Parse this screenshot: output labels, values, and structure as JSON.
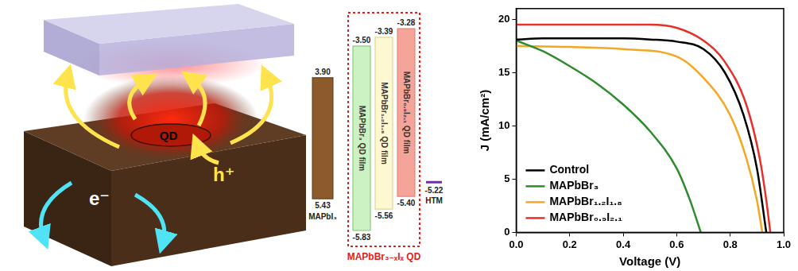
{
  "schematic": {
    "qd_label": "QD",
    "hole_label": "h⁺",
    "electron_label": "e⁻"
  },
  "band_diagram": {
    "materials": [
      {
        "name": "MAPbI₃",
        "conduction_band": {
          "value": 3.9,
          "label": "3.90"
        },
        "valence_band": 5.43,
        "color": "#8c5a2b"
      }
    ],
    "group": {
      "label": "MAPbBr₃₋ₓIₓ QD",
      "color": "#e0201c",
      "materials": [
        {
          "name": "MAPbBr₃ QD film",
          "conduction_band": {
            "value": -3.5,
            "label": "-3.50"
          },
          "valence_band": -5.83,
          "color": "#ccf2c4"
        },
        {
          "name": "MAPbBr₁.₂I₁.₈ QD film",
          "conduction_band": -3.39,
          "valence_band": -5.56,
          "color": "#fdf8cf"
        },
        {
          "name": "MAPbBr₀.₉I₂.₁ QD film",
          "conduction_band": -3.28,
          "valence_band": {
            "value": -5.4,
            "label": "-5.40"
          },
          "color": "#f5a49a"
        }
      ]
    },
    "htm": {
      "name": "HTM",
      "level": -5.22,
      "color": "#7030a0"
    }
  },
  "chart_data": {
    "type": "line",
    "x_label": "Voltage (V)",
    "y_label": "J (mA/cm²)",
    "xlim": [
      0,
      1
    ],
    "xticks": [
      {
        "value": 0,
        "label": "0.0"
      },
      0.2,
      0.4,
      0.6,
      0.8,
      {
        "value": 1,
        "label": "1.0"
      }
    ],
    "ylim": [
      0,
      21
    ],
    "yticks": [
      0,
      5,
      10,
      15,
      20
    ],
    "grid": false,
    "legend": "lower left",
    "series": [
      {
        "name": "Control",
        "color": "#000000",
        "x": [
          0,
          0.1,
          0.2,
          0.3,
          0.4,
          0.5,
          0.6,
          0.7,
          0.78,
          0.85,
          0.9,
          0.935
        ],
        "values": [
          18.1,
          18.2,
          18.2,
          18.2,
          18.2,
          18.1,
          17.9,
          17.2,
          15.0,
          11.0,
          6.0,
          0
        ]
      },
      {
        "name": "MAPbBr₃",
        "color": "#2e8b2e",
        "x": [
          0,
          0.1,
          0.2,
          0.3,
          0.4,
          0.5,
          0.6,
          0.65,
          0.69
        ],
        "values": [
          18.0,
          17.0,
          15.6,
          14.0,
          12.0,
          9.5,
          6.0,
          3.0,
          0
        ]
      },
      {
        "name": "MAPbBr₁.₂I₁.₈",
        "color": "#f5a623",
        "x": [
          0,
          0.2,
          0.4,
          0.6,
          0.7,
          0.8,
          0.86,
          0.9,
          0.92
        ],
        "values": [
          17.5,
          17.4,
          17.2,
          16.5,
          14.5,
          11.0,
          7.0,
          3.0,
          0
        ]
      },
      {
        "name": "MAPbBr₀.₉I₂.₁",
        "color": "#e8302a",
        "x": [
          0,
          0.2,
          0.4,
          0.5,
          0.6,
          0.7,
          0.78,
          0.86,
          0.91,
          0.935,
          0.95
        ],
        "values": [
          19.5,
          19.5,
          19.5,
          19.5,
          19.2,
          18.0,
          16.0,
          12.0,
          7.0,
          3.0,
          0
        ]
      }
    ]
  }
}
